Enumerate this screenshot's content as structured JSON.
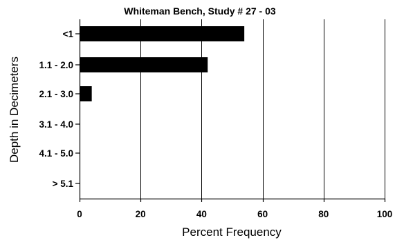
{
  "chart_data": {
    "type": "bar",
    "orientation": "horizontal",
    "title": "Whiteman Bench, Study # 27 - 03",
    "xlabel": "Percent Frequency",
    "ylabel": "Depth in Decimeters",
    "categories": [
      "<1",
      "1.1 - 2.0",
      "2.1 - 3.0",
      "3.1 - 4.0",
      "4.1 - 5.0",
      "> 5.1"
    ],
    "values": [
      54,
      42,
      4,
      0,
      0,
      0
    ],
    "xlim": [
      0,
      100
    ],
    "xticks": [
      0,
      20,
      40,
      60,
      80,
      100
    ],
    "xtick_labels": [
      "0",
      "20",
      "40",
      "60",
      "80",
      "100"
    ],
    "grid": "vertical",
    "legend": "none",
    "bar_color": "#000000",
    "grid_color": "#000000"
  }
}
